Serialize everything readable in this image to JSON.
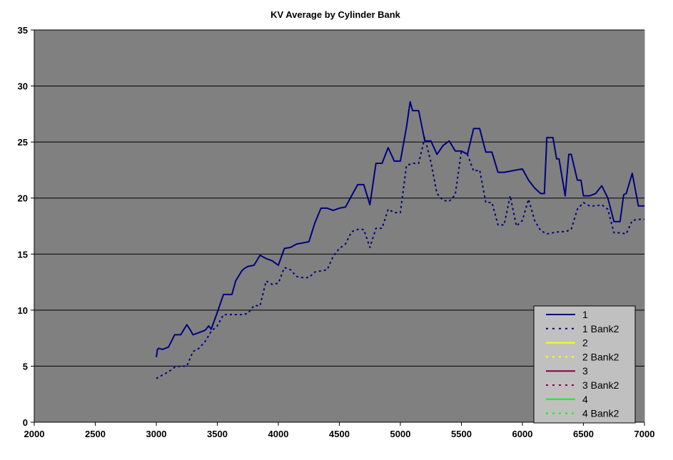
{
  "chart_data": {
    "type": "line",
    "title": "KV Average by Cylinder Bank",
    "xlabel": "",
    "ylabel": "",
    "xlim": [
      2000,
      7000
    ],
    "ylim": [
      0,
      35
    ],
    "x_ticks": [
      "2000",
      "2500",
      "3000",
      "3500",
      "4000",
      "4500",
      "5000",
      "5500",
      "6000",
      "6500",
      "7000"
    ],
    "y_ticks": [
      "0",
      "5",
      "10",
      "15",
      "20",
      "25",
      "30",
      "35"
    ],
    "grid": "horizontal",
    "legend_position": "bottom-right",
    "colors": {
      "plot_background": "#808080",
      "legend_background": "#c0c0c0",
      "gridline": "#000000"
    },
    "series": [
      {
        "name": "1",
        "color": "#000080",
        "dash": "solid",
        "x": [
          3000,
          3010,
          3020,
          3050,
          3100,
          3150,
          3200,
          3250,
          3280,
          3300,
          3350,
          3400,
          3430,
          3450,
          3500,
          3550,
          3600,
          3620,
          3650,
          3700,
          3720,
          3750,
          3800,
          3850,
          3900,
          3950,
          4000,
          4050,
          4100,
          4150,
          4200,
          4250,
          4300,
          4350,
          4400,
          4450,
          4500,
          4550,
          4600,
          4650,
          4700,
          4750,
          4800,
          4850,
          4900,
          4950,
          5000,
          5050,
          5080,
          5100,
          5150,
          5200,
          5250,
          5300,
          5350,
          5400,
          5450,
          5500,
          5550,
          5600,
          5650,
          5700,
          5750,
          5800,
          5850,
          5900,
          5950,
          6000,
          6050,
          6100,
          6150,
          6180,
          6200,
          6230,
          6250,
          6280,
          6300,
          6350,
          6380,
          6400,
          6450,
          6480,
          6500,
          6550,
          6600,
          6650,
          6700,
          6750,
          6800,
          6830,
          6850,
          6900,
          6950,
          7000
        ],
        "values": [
          5.8,
          6.5,
          6.6,
          6.5,
          6.7,
          7.8,
          7.8,
          8.7,
          8.2,
          7.8,
          8.0,
          8.2,
          8.6,
          8.3,
          9.8,
          11.4,
          11.4,
          11.4,
          12.6,
          13.5,
          13.7,
          13.9,
          14.0,
          14.9,
          14.6,
          14.4,
          14.0,
          15.5,
          15.6,
          15.9,
          16.0,
          16.1,
          17.8,
          19.1,
          19.1,
          18.9,
          19.1,
          19.2,
          20.2,
          21.2,
          21.2,
          19.4,
          23.1,
          23.1,
          24.5,
          23.3,
          23.3,
          26.3,
          28.6,
          27.8,
          27.8,
          25.1,
          25.1,
          23.9,
          24.7,
          25.1,
          24.2,
          24.2,
          23.9,
          26.2,
          26.2,
          24.1,
          24.1,
          22.3,
          22.3,
          22.4,
          22.5,
          22.6,
          21.6,
          20.9,
          20.4,
          20.4,
          25.4,
          25.4,
          25.4,
          23.5,
          23.5,
          20.2,
          23.9,
          23.9,
          21.6,
          21.6,
          20.2,
          20.2,
          20.4,
          21.1,
          20.0,
          17.9,
          17.9,
          20.3,
          20.4,
          22.2,
          19.3,
          19.3
        ]
      },
      {
        "name": "1 Bank2",
        "color": "#000080",
        "dash": "dotted",
        "x": [
          3000,
          3050,
          3100,
          3150,
          3200,
          3250,
          3300,
          3350,
          3400,
          3450,
          3500,
          3550,
          3600,
          3650,
          3700,
          3750,
          3800,
          3850,
          3900,
          3950,
          4000,
          4050,
          4100,
          4150,
          4200,
          4250,
          4300,
          4350,
          4400,
          4450,
          4500,
          4550,
          4600,
          4650,
          4700,
          4750,
          4800,
          4850,
          4900,
          4950,
          5000,
          5050,
          5100,
          5150,
          5200,
          5250,
          5300,
          5350,
          5400,
          5450,
          5500,
          5550,
          5600,
          5650,
          5700,
          5750,
          5800,
          5850,
          5900,
          5950,
          6000,
          6050,
          6100,
          6150,
          6200,
          6250,
          6300,
          6350,
          6400,
          6450,
          6500,
          6550,
          6600,
          6650,
          6700,
          6750,
          6800,
          6850,
          6900,
          6950,
          7000
        ],
        "values": [
          3.9,
          4.2,
          4.5,
          4.9,
          5.0,
          5.0,
          6.3,
          6.6,
          7.2,
          8.1,
          8.6,
          9.6,
          9.6,
          9.6,
          9.6,
          9.7,
          10.4,
          10.4,
          12.6,
          12.3,
          12.4,
          13.8,
          13.6,
          13.0,
          12.9,
          12.9,
          13.4,
          13.5,
          13.6,
          14.8,
          15.5,
          15.9,
          17.0,
          17.2,
          17.2,
          15.6,
          17.3,
          17.3,
          19.0,
          18.7,
          18.7,
          22.9,
          23.1,
          23.1,
          25.4,
          23.2,
          20.4,
          19.8,
          19.7,
          20.3,
          24.2,
          23.9,
          22.4,
          22.5,
          19.6,
          19.6,
          17.6,
          17.6,
          20.2,
          17.5,
          18.0,
          19.9,
          18.0,
          17.1,
          16.8,
          16.9,
          17.0,
          17.0,
          17.2,
          19.0,
          19.6,
          19.3,
          19.3,
          19.4,
          19.0,
          16.9,
          16.9,
          16.8,
          18.0,
          18.1,
          18.1
        ]
      },
      {
        "name": "2",
        "color": "#ffff00",
        "dash": "solid",
        "x": [],
        "values": []
      },
      {
        "name": "2 Bank2",
        "color": "#ffff00",
        "dash": "dotted",
        "x": [],
        "values": []
      },
      {
        "name": "3",
        "color": "#800040",
        "dash": "solid",
        "x": [],
        "values": []
      },
      {
        "name": "3 Bank2",
        "color": "#800040",
        "dash": "dotted",
        "x": [],
        "values": []
      },
      {
        "name": "4",
        "color": "#00ff00",
        "dash": "solid",
        "x": [],
        "values": []
      },
      {
        "name": "4 Bank2",
        "color": "#00ff00",
        "dash": "dotted",
        "x": [],
        "values": []
      }
    ]
  }
}
